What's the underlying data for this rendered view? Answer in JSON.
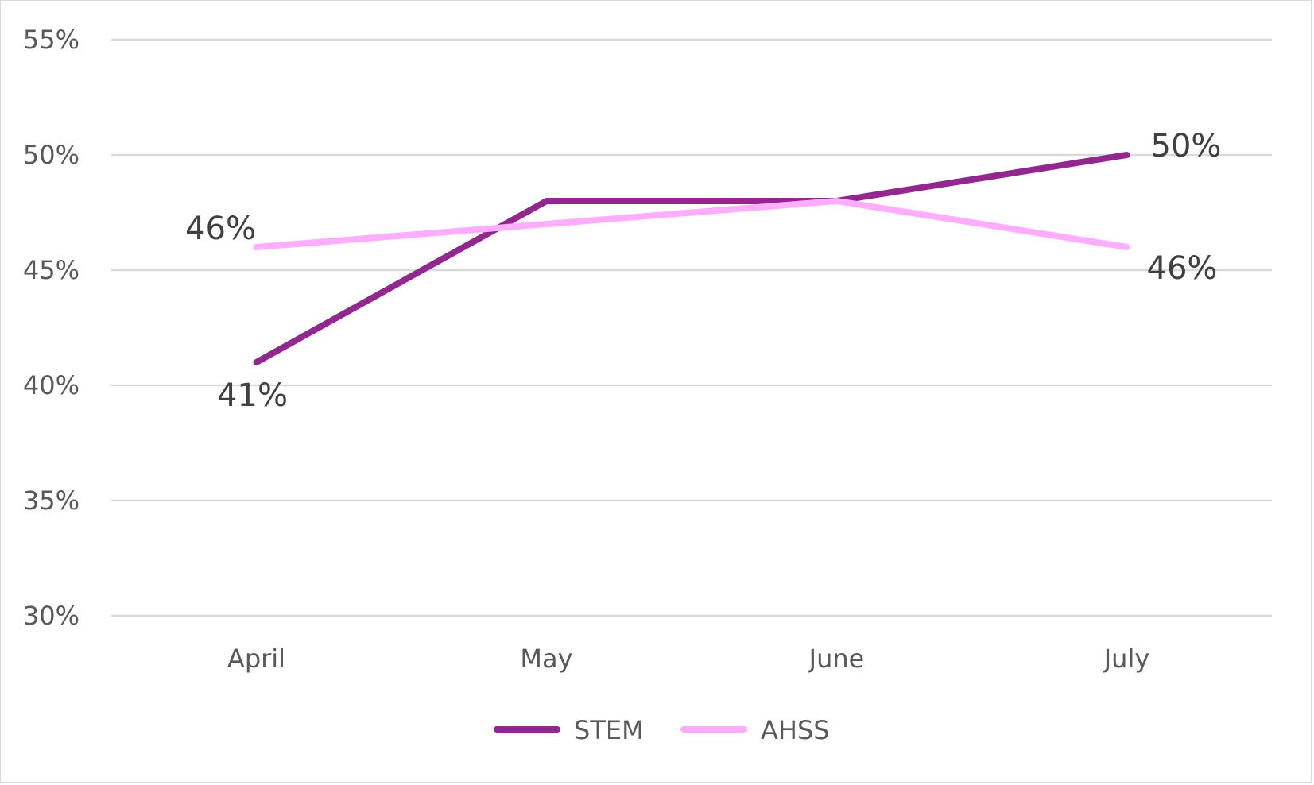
{
  "chart_data": {
    "type": "line",
    "title": "",
    "xlabel": "",
    "ylabel": "",
    "categories": [
      "April",
      "May",
      "June",
      "July"
    ],
    "ylim": [
      0.3,
      0.55
    ],
    "yticks": [
      "30%",
      "35%",
      "40%",
      "45%",
      "50%",
      "55%"
    ],
    "grid": true,
    "legend": "bottom",
    "series": [
      {
        "name": "STEM",
        "color": "#92278f",
        "values": [
          0.41,
          0.48,
          0.48,
          0.5
        ],
        "data_labels": [
          "41%",
          null,
          null,
          "50%"
        ]
      },
      {
        "name": "AHSS",
        "color": "#ffadff",
        "values": [
          0.46,
          0.47,
          0.48,
          0.46
        ],
        "data_labels": [
          "46%",
          null,
          null,
          "46%"
        ]
      }
    ]
  }
}
